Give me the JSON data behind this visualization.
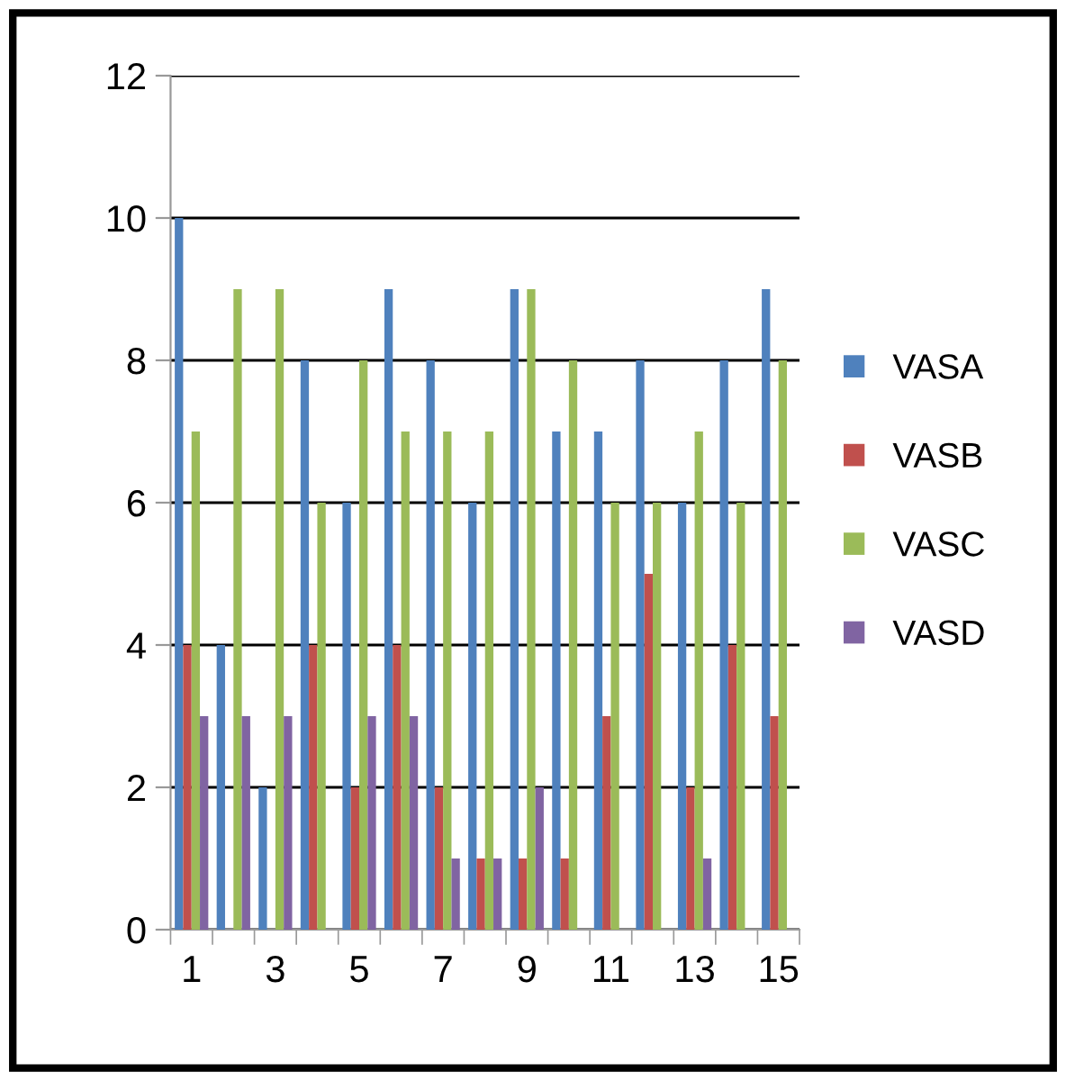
{
  "chart_data": {
    "type": "bar",
    "categories": [
      "1",
      null,
      "3",
      null,
      "5",
      null,
      "7",
      null,
      "9",
      null,
      "11",
      null,
      "13",
      null,
      "15"
    ],
    "series": [
      {
        "name": "VASA",
        "color": "#4f81bd",
        "values": [
          10,
          4,
          2,
          8,
          6,
          9,
          8,
          6,
          9,
          7,
          7,
          8,
          6,
          8,
          9
        ]
      },
      {
        "name": "VASB",
        "color": "#c0504d",
        "values": [
          4,
          0,
          0,
          4,
          2,
          4,
          2,
          1,
          1,
          1,
          3,
          5,
          2,
          4,
          3
        ]
      },
      {
        "name": "VASC",
        "color": "#9bbb59",
        "values": [
          7,
          9,
          9,
          6,
          8,
          7,
          7,
          7,
          9,
          8,
          6,
          6,
          7,
          6,
          8
        ]
      },
      {
        "name": "VASD",
        "color": "#8064a2",
        "values": [
          3,
          3,
          3,
          0,
          3,
          3,
          1,
          1,
          2,
          0,
          0,
          0,
          1,
          0,
          0
        ]
      }
    ],
    "ylim": [
      0,
      12
    ],
    "yticks": [
      0,
      2,
      4,
      6,
      8,
      10,
      12
    ],
    "grid": "y",
    "legend": "right"
  }
}
